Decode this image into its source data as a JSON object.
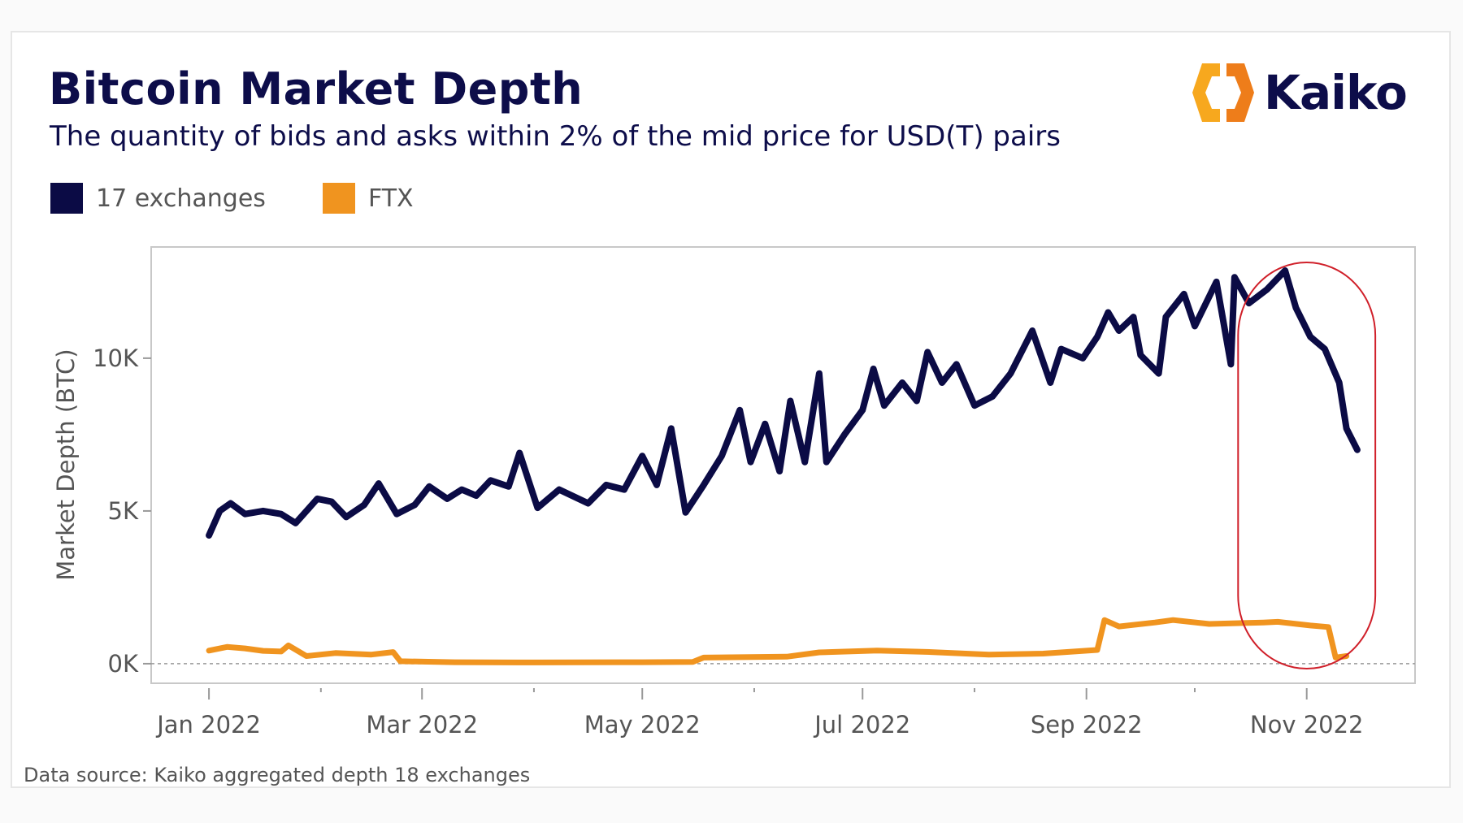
{
  "header": {
    "title": "Bitcoin Market Depth",
    "subtitle": "The quantity of bids and asks within 2% of the mid price for USD(T) pairs"
  },
  "logo": {
    "text": "Kaiko",
    "colors": [
      "#f7a81e",
      "#ee7d1a"
    ]
  },
  "footer": {
    "source": "Data source: Kaiko aggregated depth 18 exchanges"
  },
  "chart_data": {
    "type": "line",
    "title": "",
    "ylabel": "Market Depth (BTC)",
    "xlabel": "",
    "grid": false,
    "legend_position": "top-left",
    "xlim": [
      "2021-12-16",
      "2022-12-01"
    ],
    "ylim": [
      -640,
      13640
    ],
    "y_ticks": [
      {
        "value": 0,
        "label": "0K"
      },
      {
        "value": 5000,
        "label": "5K"
      },
      {
        "value": 10000,
        "label": "10K"
      }
    ],
    "x_ticks": [
      {
        "date": "2022-01-01",
        "label": "Jan 2022"
      },
      {
        "date": "2022-03-01",
        "label": "Mar 2022"
      },
      {
        "date": "2022-05-01",
        "label": "May 2022"
      },
      {
        "date": "2022-07-01",
        "label": "Jul 2022"
      },
      {
        "date": "2022-09-01",
        "label": "Sep 2022"
      },
      {
        "date": "2022-11-01",
        "label": "Nov 2022"
      }
    ],
    "x_minor_ticks": [
      "2022-02-01",
      "2022-04-01",
      "2022-06-01",
      "2022-08-01",
      "2022-10-01"
    ],
    "zero_line": "dashed",
    "annotation": {
      "type": "rounded-rectangle",
      "color": "#d0202a",
      "from": "2022-10-13",
      "to": "2022-11-20"
    },
    "series": [
      {
        "name": "17 exchanges",
        "color": "#0b0b45",
        "points": [
          [
            "2022-01-01",
            4200
          ],
          [
            "2022-01-04",
            5000
          ],
          [
            "2022-01-07",
            5250
          ],
          [
            "2022-01-11",
            4900
          ],
          [
            "2022-01-16",
            5000
          ],
          [
            "2022-01-21",
            4900
          ],
          [
            "2022-01-25",
            4600
          ],
          [
            "2022-01-31",
            5400
          ],
          [
            "2022-02-04",
            5300
          ],
          [
            "2022-02-08",
            4800
          ],
          [
            "2022-02-13",
            5200
          ],
          [
            "2022-02-17",
            5900
          ],
          [
            "2022-02-22",
            4900
          ],
          [
            "2022-02-27",
            5200
          ],
          [
            "2022-03-03",
            5800
          ],
          [
            "2022-03-08",
            5400
          ],
          [
            "2022-03-12",
            5700
          ],
          [
            "2022-03-16",
            5500
          ],
          [
            "2022-03-20",
            6000
          ],
          [
            "2022-03-25",
            5800
          ],
          [
            "2022-03-28",
            6900
          ],
          [
            "2022-04-02",
            5100
          ],
          [
            "2022-04-08",
            5700
          ],
          [
            "2022-04-16",
            5250
          ],
          [
            "2022-04-21",
            5850
          ],
          [
            "2022-04-26",
            5700
          ],
          [
            "2022-05-01",
            6800
          ],
          [
            "2022-05-05",
            5850
          ],
          [
            "2022-05-09",
            7700
          ],
          [
            "2022-05-13",
            4950
          ],
          [
            "2022-05-18",
            5850
          ],
          [
            "2022-05-23",
            6800
          ],
          [
            "2022-05-28",
            8300
          ],
          [
            "2022-05-31",
            6600
          ],
          [
            "2022-06-04",
            7850
          ],
          [
            "2022-06-08",
            6300
          ],
          [
            "2022-06-11",
            8600
          ],
          [
            "2022-06-15",
            6600
          ],
          [
            "2022-06-19",
            9500
          ],
          [
            "2022-06-21",
            6600
          ],
          [
            "2022-06-26",
            7500
          ],
          [
            "2022-07-01",
            8300
          ],
          [
            "2022-07-04",
            9650
          ],
          [
            "2022-07-07",
            8450
          ],
          [
            "2022-07-12",
            9200
          ],
          [
            "2022-07-16",
            8600
          ],
          [
            "2022-07-19",
            10200
          ],
          [
            "2022-07-23",
            9200
          ],
          [
            "2022-07-27",
            9800
          ],
          [
            "2022-08-01",
            8450
          ],
          [
            "2022-08-06",
            8750
          ],
          [
            "2022-08-11",
            9500
          ],
          [
            "2022-08-17",
            10900
          ],
          [
            "2022-08-22",
            9200
          ],
          [
            "2022-08-25",
            10300
          ],
          [
            "2022-08-31",
            10000
          ],
          [
            "2022-09-04",
            10700
          ],
          [
            "2022-09-07",
            11500
          ],
          [
            "2022-09-10",
            10900
          ],
          [
            "2022-09-14",
            11350
          ],
          [
            "2022-09-16",
            10100
          ],
          [
            "2022-09-21",
            9500
          ],
          [
            "2022-09-23",
            11350
          ],
          [
            "2022-09-28",
            12100
          ],
          [
            "2022-10-01",
            11050
          ],
          [
            "2022-10-07",
            12500
          ],
          [
            "2022-10-11",
            9800
          ],
          [
            "2022-10-12",
            12650
          ],
          [
            "2022-10-16",
            11800
          ],
          [
            "2022-10-21",
            12250
          ],
          [
            "2022-10-26",
            12870
          ],
          [
            "2022-10-29",
            11650
          ],
          [
            "2022-11-02",
            10700
          ],
          [
            "2022-11-06",
            10300
          ],
          [
            "2022-11-10",
            9200
          ],
          [
            "2022-11-12",
            7700
          ],
          [
            "2022-11-15",
            7000
          ]
        ]
      },
      {
        "name": "FTX",
        "color": "#f0941f",
        "points": [
          [
            "2022-01-01",
            430
          ],
          [
            "2022-01-06",
            550
          ],
          [
            "2022-01-11",
            500
          ],
          [
            "2022-01-16",
            420
          ],
          [
            "2022-01-21",
            400
          ],
          [
            "2022-01-23",
            600
          ],
          [
            "2022-01-28",
            250
          ],
          [
            "2022-02-05",
            350
          ],
          [
            "2022-02-15",
            300
          ],
          [
            "2022-02-21",
            380
          ],
          [
            "2022-02-23",
            80
          ],
          [
            "2022-03-10",
            50
          ],
          [
            "2022-04-01",
            40
          ],
          [
            "2022-05-01",
            50
          ],
          [
            "2022-05-15",
            60
          ],
          [
            "2022-05-18",
            200
          ],
          [
            "2022-06-10",
            230
          ],
          [
            "2022-06-19",
            370
          ],
          [
            "2022-07-05",
            430
          ],
          [
            "2022-07-20",
            380
          ],
          [
            "2022-08-05",
            300
          ],
          [
            "2022-08-20",
            330
          ],
          [
            "2022-09-04",
            450
          ],
          [
            "2022-09-06",
            1430
          ],
          [
            "2022-09-10",
            1220
          ],
          [
            "2022-09-20",
            1350
          ],
          [
            "2022-09-25",
            1430
          ],
          [
            "2022-10-05",
            1300
          ],
          [
            "2022-10-20",
            1350
          ],
          [
            "2022-10-24",
            1370
          ],
          [
            "2022-11-02",
            1250
          ],
          [
            "2022-11-07",
            1200
          ],
          [
            "2022-11-09",
            200
          ],
          [
            "2022-11-12",
            250
          ]
        ]
      }
    ]
  }
}
